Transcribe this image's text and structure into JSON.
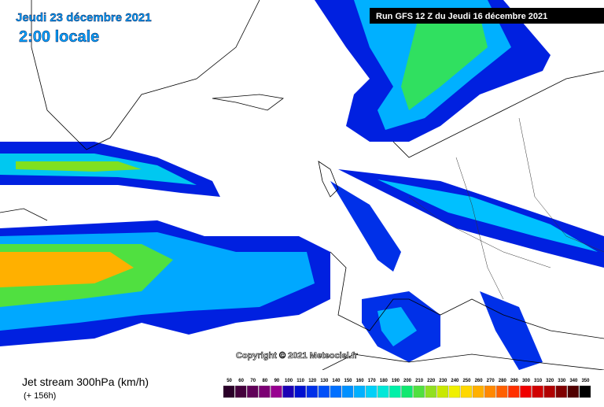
{
  "header": {
    "date": "Jeudi 23 décembre 2021",
    "time": "2:00 locale",
    "run": "Run GFS 12 Z du Jeudi 16 décembre 2021"
  },
  "map": {
    "copyright": "Copyright © 2021 Meteociel.fr"
  },
  "footer": {
    "title": "Jet stream 300hPa (km/h)",
    "forecast": "(+ 156h)"
  },
  "legend": {
    "ticks": [
      50,
      60,
      70,
      80,
      90,
      100,
      110,
      120,
      130,
      140,
      150,
      160,
      170,
      180,
      190,
      200,
      210,
      220,
      230,
      240,
      250,
      260,
      270,
      280,
      290,
      300,
      310,
      320,
      330,
      340,
      350
    ],
    "colors": [
      "#2a0028",
      "#44003c",
      "#600058",
      "#7c0074",
      "#980090",
      "#1c00b4",
      "#0010d0",
      "#0030e8",
      "#0050f8",
      "#0070ff",
      "#0090ff",
      "#00b0ff",
      "#00d0f8",
      "#00e8d8",
      "#00f0a8",
      "#10e870",
      "#50e040",
      "#90e020",
      "#c8e800",
      "#f0f000",
      "#ffd800",
      "#ffb000",
      "#ff8800",
      "#ff6000",
      "#ff3000",
      "#f00000",
      "#d00000",
      "#b00000",
      "#800000",
      "#500000",
      "#000000"
    ]
  }
}
